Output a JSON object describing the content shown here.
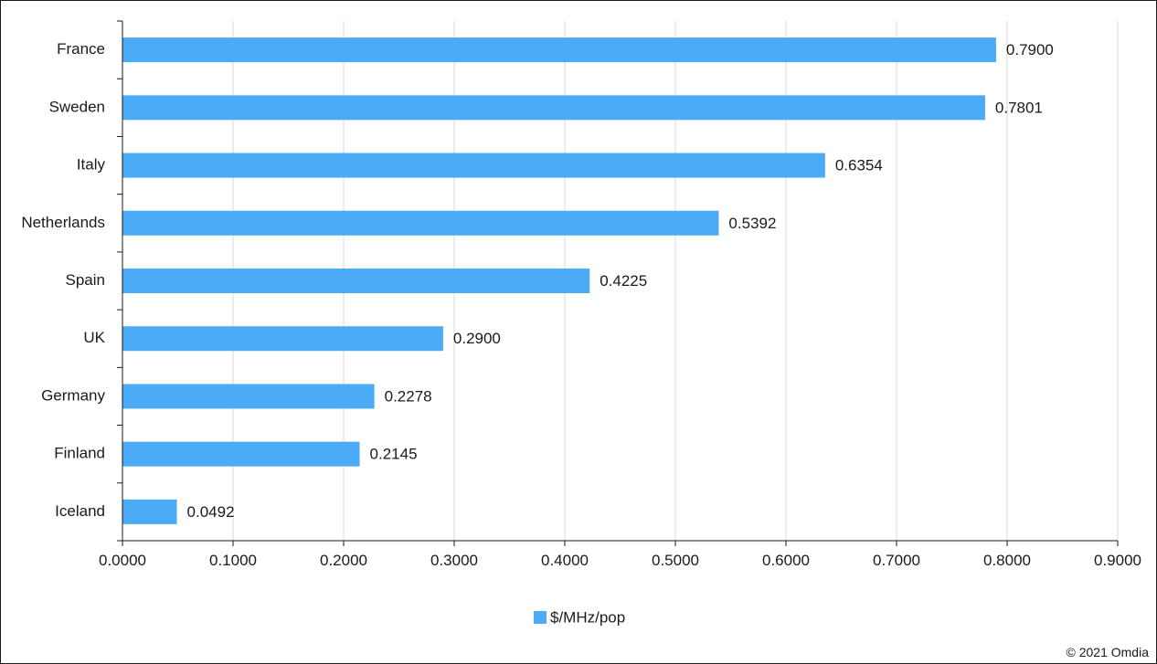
{
  "chart_data": {
    "type": "bar",
    "orientation": "horizontal",
    "categories": [
      "France",
      "Sweden",
      "Italy",
      "Netherlands",
      "Spain",
      "UK",
      "Germany",
      "Finland",
      "Iceland"
    ],
    "series": [
      {
        "name": "$/MHz/pop",
        "color": "#4BABF7",
        "values": [
          0.79,
          0.7801,
          0.6354,
          0.5392,
          0.4225,
          0.29,
          0.2278,
          0.2145,
          0.0492
        ],
        "labels": [
          "0.7900",
          "0.7801",
          "0.6354",
          "0.5392",
          "0.4225",
          "0.2900",
          "0.2278",
          "0.2145",
          "0.0492"
        ]
      }
    ],
    "xlim": [
      0,
      0.9
    ],
    "x_ticks": [
      0,
      0.1,
      0.2,
      0.3,
      0.4,
      0.5,
      0.6,
      0.7,
      0.8,
      0.9
    ],
    "x_tick_labels": [
      "0.0000",
      "0.1000",
      "0.2000",
      "0.3000",
      "0.4000",
      "0.5000",
      "0.6000",
      "0.7000",
      "0.8000",
      "0.9000"
    ],
    "grid": "vertical",
    "legend": "bottom-center"
  },
  "footer": {
    "copyright": "© 2021 Omdia"
  }
}
